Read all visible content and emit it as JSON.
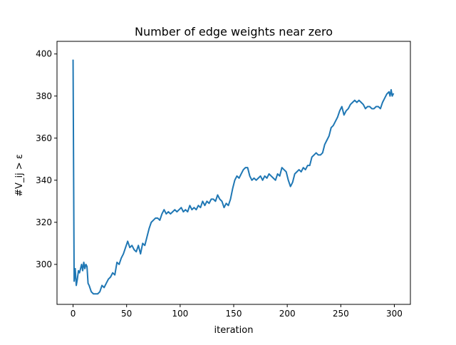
{
  "chart_data": {
    "type": "line",
    "title": "Number of edge weights near zero",
    "xlabel": "iteration",
    "ylabel": "#V_ij > ε",
    "xlim": [
      -15,
      315
    ],
    "ylim": [
      281,
      406
    ],
    "x_ticks": [
      0,
      50,
      100,
      150,
      200,
      250,
      300
    ],
    "y_ticks": [
      300,
      320,
      340,
      360,
      380,
      400
    ],
    "grid": false,
    "series": [
      {
        "color": "#1f77b4",
        "x": [
          0,
          1,
          2,
          3,
          4,
          5,
          6,
          7,
          8,
          9,
          10,
          11,
          12,
          13,
          14,
          15,
          17,
          19,
          21,
          23,
          25,
          27,
          29,
          31,
          33,
          35,
          37,
          39,
          41,
          43,
          45,
          47,
          49,
          51,
          53,
          55,
          57,
          59,
          61,
          63,
          65,
          67,
          69,
          71,
          73,
          75,
          77,
          79,
          81,
          83,
          85,
          87,
          89,
          91,
          93,
          95,
          97,
          99,
          101,
          103,
          105,
          107,
          109,
          111,
          113,
          115,
          117,
          119,
          121,
          123,
          125,
          127,
          129,
          131,
          133,
          135,
          137,
          139,
          141,
          143,
          145,
          147,
          149,
          151,
          153,
          155,
          157,
          159,
          161,
          163,
          165,
          167,
          169,
          171,
          173,
          175,
          177,
          179,
          181,
          183,
          185,
          187,
          189,
          191,
          193,
          195,
          197,
          199,
          201,
          203,
          205,
          207,
          209,
          211,
          213,
          215,
          217,
          219,
          221,
          223,
          225,
          227,
          229,
          231,
          233,
          235,
          237,
          239,
          241,
          243,
          245,
          247,
          249,
          251,
          253,
          255,
          257,
          259,
          261,
          263,
          265,
          267,
          269,
          271,
          273,
          275,
          277,
          279,
          281,
          283,
          285,
          287,
          289,
          291,
          293,
          295,
          296,
          297,
          298,
          299
        ],
        "y": [
          397,
          292,
          298,
          290,
          293,
          297,
          296,
          298,
          300,
          297,
          301,
          298,
          300,
          299,
          291,
          290,
          287,
          286,
          286,
          286,
          287,
          290,
          289,
          291,
          293,
          294,
          296,
          295,
          301,
          300,
          303,
          305,
          308,
          311,
          308,
          309,
          307,
          306,
          309,
          305,
          310,
          309,
          313,
          317,
          320,
          321,
          322,
          322,
          321,
          324,
          326,
          324,
          325,
          324,
          325,
          326,
          325,
          326,
          327,
          325,
          326,
          325,
          328,
          326,
          327,
          326,
          328,
          327,
          330,
          328,
          330,
          329,
          331,
          331,
          330,
          333,
          331,
          330,
          327,
          329,
          328,
          331,
          336,
          340,
          342,
          341,
          343,
          345,
          346,
          346,
          342,
          340,
          341,
          340,
          341,
          342,
          340,
          342,
          341,
          343,
          342,
          341,
          340,
          343,
          342,
          346,
          345,
          344,
          340,
          337,
          339,
          343,
          344,
          345,
          344,
          346,
          345,
          347,
          347,
          351,
          352,
          353,
          352,
          352,
          353,
          357,
          359,
          361,
          365,
          366,
          368,
          370,
          373,
          375,
          371,
          373,
          374,
          376,
          377,
          378,
          377,
          378,
          377,
          376,
          374,
          375,
          375,
          374,
          374,
          375,
          375,
          374,
          377,
          379,
          381,
          382,
          380,
          383,
          380,
          381
        ]
      }
    ]
  }
}
